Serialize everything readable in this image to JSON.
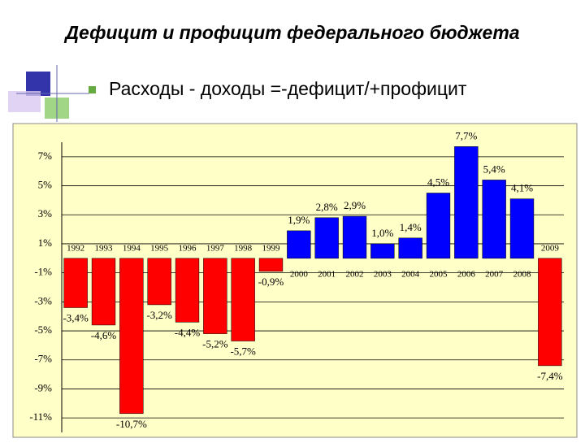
{
  "chart_data": {
    "type": "bar",
    "title": "Дефицит и профицит федерального бюджета",
    "subtitle": "Расходы - доходы =-дефицит/+профицит",
    "categories": [
      "1992",
      "1993",
      "1994",
      "1995",
      "1996",
      "1997",
      "1998",
      "1999",
      "2000",
      "2001",
      "2002",
      "2003",
      "2004",
      "2005",
      "2006",
      "2007",
      "2008",
      "2009"
    ],
    "values": [
      -3.4,
      -4.6,
      -10.7,
      -3.2,
      -4.4,
      -5.2,
      -5.7,
      -0.9,
      1.9,
      2.8,
      2.9,
      1.0,
      1.4,
      4.5,
      7.7,
      5.4,
      4.1,
      -7.4
    ],
    "value_labels": [
      "-3,4%",
      "-4,6%",
      "-10,7%",
      "-3,2%",
      "-4,4%",
      "-5,2%",
      "-5,7%",
      "-0,9%",
      "1,9%",
      "2,8%",
      "2,9%",
      "1,0%",
      "1,4%",
      "4,5%",
      "7,7%",
      "5,4%",
      "4,1%",
      "-7,4%"
    ],
    "color_positive": "#0000ff",
    "color_negative": "#ff0000",
    "ylim": [
      -12,
      8
    ],
    "yticks": [
      {
        "value": 7,
        "label": "7%"
      },
      {
        "value": 5,
        "label": "5%"
      },
      {
        "value": 3,
        "label": "3%"
      },
      {
        "value": 1,
        "label": "1%"
      },
      {
        "value": -1,
        "label": "-1%"
      },
      {
        "value": -3,
        "label": "-3%"
      },
      {
        "value": -5,
        "label": "-5%"
      },
      {
        "value": -7,
        "label": "-7%"
      },
      {
        "value": -9,
        "label": "-9%"
      },
      {
        "value": -11,
        "label": "-11%"
      }
    ],
    "grid": true
  }
}
